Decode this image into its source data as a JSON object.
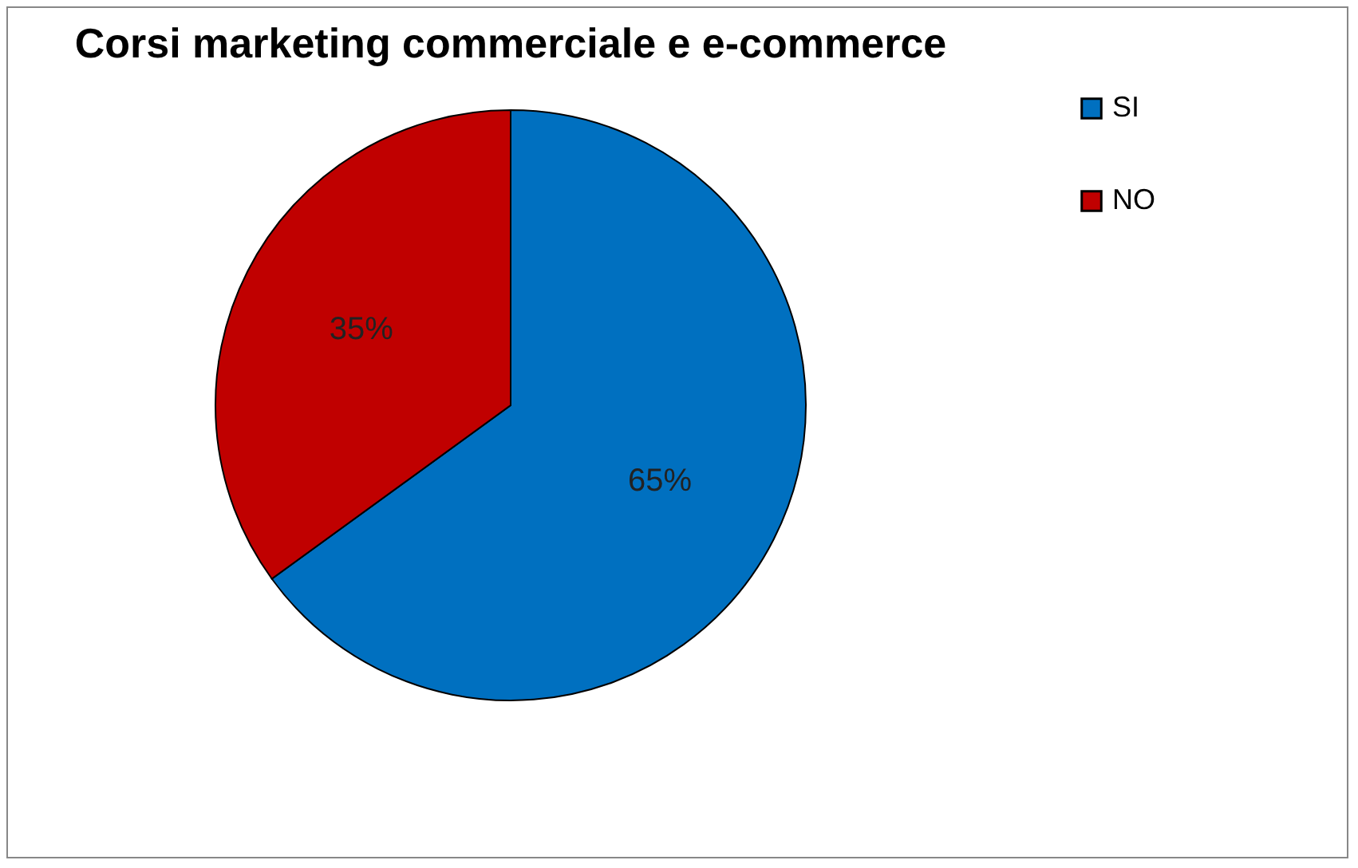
{
  "chart_data": {
    "type": "pie",
    "title": "Corsi marketing commerciale e e-commerce",
    "categories": [
      "SI",
      "NO"
    ],
    "values": [
      65,
      35
    ],
    "colors": [
      "#0070c0",
      "#c00000"
    ],
    "value_labels": [
      "65%",
      "35%"
    ],
    "legend": "right"
  }
}
